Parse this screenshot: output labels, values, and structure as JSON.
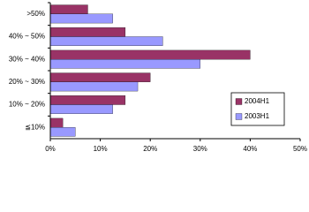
{
  "chart_data": {
    "type": "hbar",
    "categories": [
      ">50%",
      "40% ~ 50%",
      "30% ~ 40%",
      "20% ~ 30%",
      "10% ~ 20%",
      "≦10%"
    ],
    "series": [
      {
        "name": "2004H1",
        "color": "#993366",
        "values": [
          7.5,
          15,
          40,
          20,
          15,
          2.5
        ]
      },
      {
        "name": "2003H1",
        "color": "#9999ff",
        "values": [
          12.5,
          22.5,
          30,
          17.5,
          12.5,
          5
        ]
      }
    ],
    "xlim": [
      0,
      50
    ],
    "xticks": [
      {
        "value": 0,
        "label": "0%"
      },
      {
        "value": 10,
        "label": "10%"
      },
      {
        "value": 20,
        "label": "20%"
      },
      {
        "value": 30,
        "label": "30%"
      },
      {
        "value": 40,
        "label": "40%"
      },
      {
        "value": 50,
        "label": "50%"
      }
    ],
    "grid": false,
    "legend": "lower right"
  }
}
